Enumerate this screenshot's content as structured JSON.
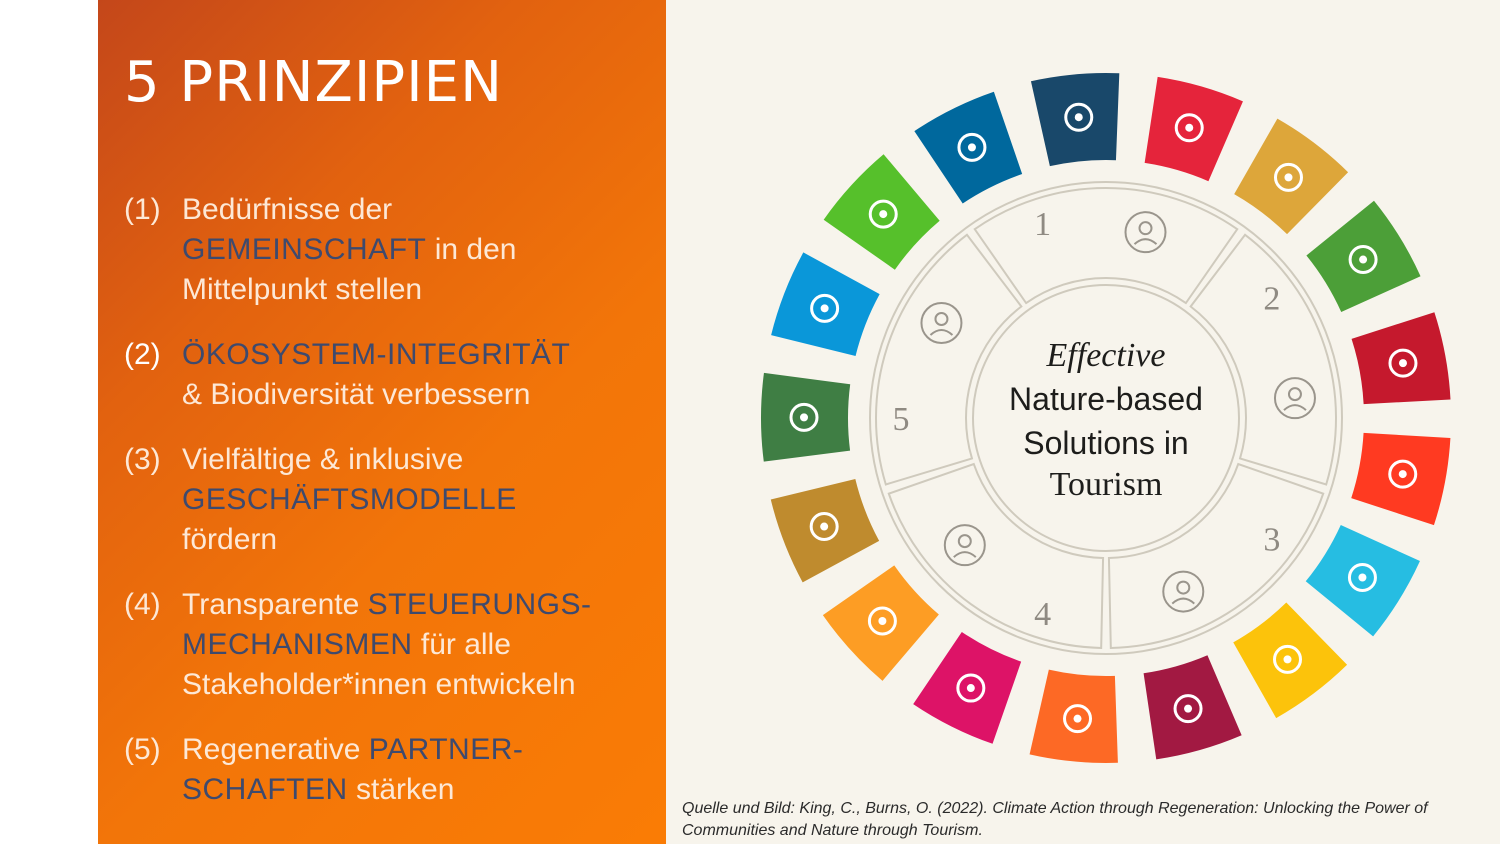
{
  "title": "5 PRINZIPIEN",
  "principles": [
    {
      "num": "(1)",
      "pre": "Bedürfnisse der",
      "highlight": "GEMEINSCHAFT",
      "mid": "in den",
      "post": "Mittelpunkt stellen"
    },
    {
      "num": "(2)",
      "highlight": "ÖKOSYSTEM-INTEGRITÄT",
      "post": "& Biodiversität verbessern"
    },
    {
      "num": "(3)",
      "pre": "Vielfältige & inklusive",
      "highlight": "GESCHÄFTSMODELLE",
      "post": "fördern"
    },
    {
      "num": "(4)",
      "pre": "Transparente",
      "highlight": "STEUERUNGS-",
      "highlight2": "MECHANISMEN",
      "mid": "für alle",
      "post": "Stakeholder*innen entwickeln"
    },
    {
      "num": "(5)",
      "pre": "Regenerative",
      "highlight": "PARTNER-",
      "highlight2": "SCHAFTEN",
      "post": "stärken"
    }
  ],
  "diagram": {
    "center_line1": "Effective",
    "center_line2": "Nature-based",
    "center_line3": "Solutions in",
    "center_line4": "Tourism",
    "segment_numbers": [
      "1",
      "2",
      "3",
      "4",
      "5"
    ],
    "segment_icons": [
      "community-icon",
      "hands-plant-icon",
      "business-network-icon",
      "handshake-contract-icon",
      "joined-hands-icon"
    ],
    "sdg_colors": [
      "#e5243b",
      "#dda63a",
      "#4c9f38",
      "#c5192d",
      "#ff3a21",
      "#26bde2",
      "#fcc30b",
      "#a21942",
      "#fd6925",
      "#dd1367",
      "#fd9d24",
      "#bf8b2e",
      "#3f7e44",
      "#0a97d9",
      "#56c02b",
      "#00689d",
      "#19486a"
    ],
    "sdg_icons": [
      "family-icon",
      "bowl-icon",
      "heartbeat-icon",
      "book-icon",
      "gender-icon",
      "water-drop-icon",
      "sun-icon",
      "growth-chart-icon",
      "cubes-icon",
      "equality-arrows-icon",
      "city-icon",
      "infinity-icon",
      "eye-globe-icon",
      "fish-icon",
      "leaf-icon",
      "dove-icon",
      "flower-icon"
    ]
  },
  "caption_line1": "Quelle und Bild: King, C., Burns, O. (2022). Climate Action through Regeneration: Unlocking the Power of",
  "caption_line2": "Communities and Nature through Tourism."
}
